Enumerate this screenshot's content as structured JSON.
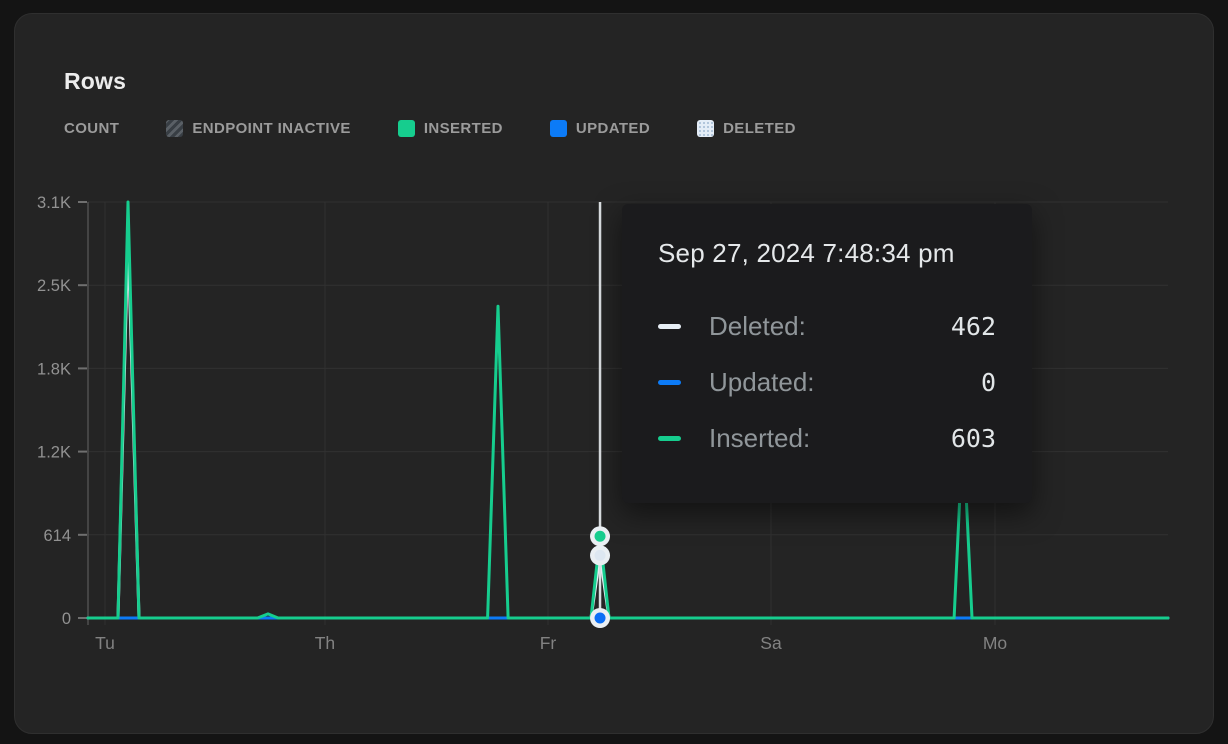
{
  "header": {
    "title": "Rows"
  },
  "legend": {
    "metric_label": "COUNT",
    "items": [
      {
        "label": "ENDPOINT INACTIVE",
        "swatch": "hatched",
        "color": "#4a5056"
      },
      {
        "label": "INSERTED",
        "swatch": "solid",
        "color": "#16cd8e"
      },
      {
        "label": "UPDATED",
        "swatch": "solid",
        "color": "#0c7bf7"
      },
      {
        "label": "DELETED",
        "swatch": "dotted",
        "color": "#e4edf7"
      }
    ]
  },
  "tooltip": {
    "timestamp": "Sep 27, 2024 7:48:34 pm",
    "rows": [
      {
        "label": "Deleted:",
        "value": "462",
        "color": "#e7eef5"
      },
      {
        "label": "Updated:",
        "value": "0",
        "color": "#0c7bf7"
      },
      {
        "label": "Inserted:",
        "value": "603",
        "color": "#16cd8e"
      }
    ]
  },
  "chart_data": {
    "type": "line",
    "title": "Rows",
    "ylabel": "COUNT",
    "grid": true,
    "y_axis": {
      "max": 3070,
      "ticks": [
        {
          "label": "3.1K",
          "value": 3070
        },
        {
          "label": "2.5K",
          "value": 2456
        },
        {
          "label": "1.8K",
          "value": 1842
        },
        {
          "label": "1.2K",
          "value": 1228
        },
        {
          "label": "614",
          "value": 614
        },
        {
          "label": "0",
          "value": 0
        }
      ]
    },
    "x_axis": {
      "ticks": [
        {
          "label": "Tu",
          "pos": 0.0157
        },
        {
          "label": "Th",
          "pos": 0.2194
        },
        {
          "label": "Fr",
          "pos": 0.4259
        },
        {
          "label": "Sa",
          "pos": 0.6324
        },
        {
          "label": "Mo",
          "pos": 0.8398
        }
      ]
    },
    "series": [
      {
        "name": "Deleted",
        "color": "#e7eef5",
        "points": [
          [
            0,
            0
          ],
          [
            0.0278,
            0
          ],
          [
            0.037,
            2830
          ],
          [
            0.0472,
            0
          ],
          [
            0.4657,
            0
          ],
          [
            0.4741,
            462
          ],
          [
            0.4824,
            0
          ],
          [
            1,
            0
          ]
        ]
      },
      {
        "name": "Updated",
        "color": "#0c7bf7",
        "points": [
          [
            0,
            0
          ],
          [
            1,
            0
          ]
        ]
      },
      {
        "name": "Inserted",
        "color": "#16cd8e",
        "points": [
          [
            0,
            0
          ],
          [
            0.0278,
            0
          ],
          [
            0.037,
            3070
          ],
          [
            0.0472,
            0
          ],
          [
            0.157,
            0
          ],
          [
            0.1667,
            30
          ],
          [
            0.176,
            0
          ],
          [
            0.37,
            0
          ],
          [
            0.3796,
            2300
          ],
          [
            0.389,
            0
          ],
          [
            0.4657,
            0
          ],
          [
            0.4741,
            603
          ],
          [
            0.4824,
            0
          ],
          [
            0.8019,
            0
          ],
          [
            0.8102,
            1390
          ],
          [
            0.8185,
            0
          ],
          [
            1,
            0
          ]
        ]
      }
    ],
    "crosshair": {
      "x": 0.4741,
      "timestamp": "Sep 27, 2024 7:48:34 pm",
      "markers": [
        {
          "series": "Inserted",
          "value": 603,
          "color": "#16cd8e"
        },
        {
          "series": "Deleted",
          "value": 462,
          "color": "#dde7f1"
        },
        {
          "series": "Updated",
          "value": 0,
          "color": "#0b6ef5"
        }
      ]
    }
  }
}
